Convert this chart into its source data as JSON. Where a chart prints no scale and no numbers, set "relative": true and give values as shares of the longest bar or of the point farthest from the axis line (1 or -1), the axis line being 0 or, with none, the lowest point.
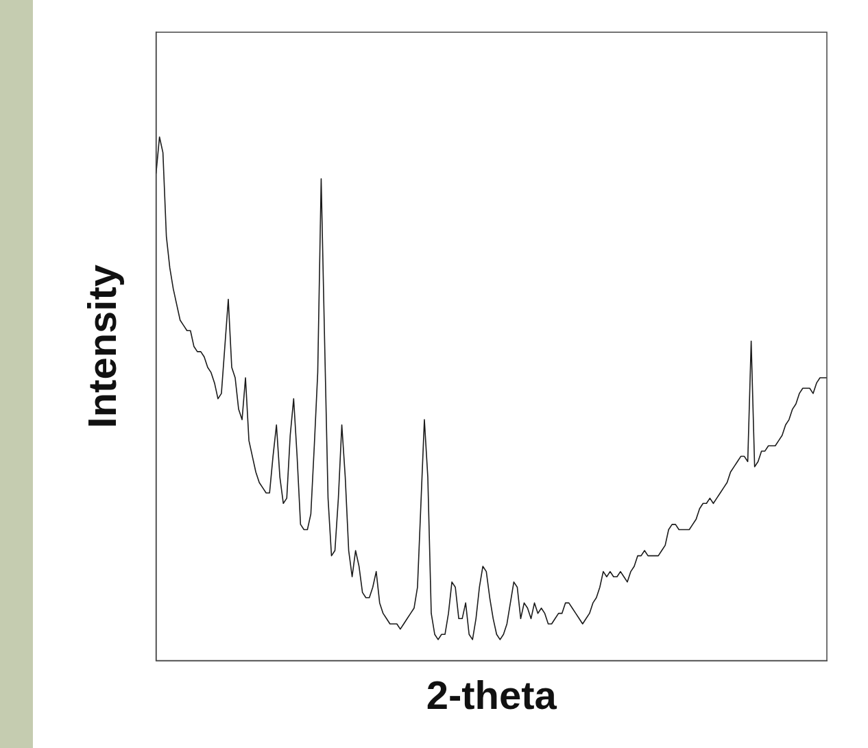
{
  "chart_data": {
    "type": "line",
    "xlabel": "2-theta",
    "ylabel": "Intensity",
    "relative": true,
    "tick_labels": false,
    "marker": "none",
    "categories": [
      null,
      null,
      null,
      null,
      null,
      null,
      null,
      null,
      null,
      null,
      null,
      null,
      null,
      null,
      null,
      null,
      null,
      null,
      null,
      null,
      null,
      null,
      null,
      null,
      null,
      null,
      null,
      null,
      null,
      null,
      null,
      null,
      null,
      null,
      null,
      null,
      null,
      null,
      null,
      null,
      null,
      null,
      null,
      null,
      null,
      null,
      null,
      null,
      null,
      null,
      null,
      null,
      null,
      null,
      null,
      null,
      null,
      null,
      null,
      null,
      null,
      null,
      null,
      null,
      null,
      null,
      null,
      null,
      null,
      null,
      null,
      null,
      null,
      null,
      null,
      null,
      null,
      null,
      null,
      null,
      null,
      null,
      null,
      null,
      null,
      null,
      null,
      null,
      null,
      null,
      null,
      null,
      null,
      null,
      null,
      null,
      null,
      null,
      null,
      null,
      null,
      null,
      null,
      null,
      null,
      null,
      null,
      null,
      null,
      null,
      null,
      null,
      null,
      null,
      null,
      null,
      null,
      null,
      null,
      null,
      null,
      null,
      null,
      null,
      null,
      null,
      null,
      null,
      null,
      null,
      null,
      null,
      null,
      null,
      null,
      null,
      null,
      null,
      null,
      null,
      null,
      null,
      null,
      null,
      null,
      null,
      null,
      null,
      null,
      null,
      null,
      null,
      null,
      null,
      null,
      null,
      null,
      null,
      null,
      null,
      null,
      null,
      null,
      null,
      null,
      null,
      null,
      null,
      null,
      null,
      null,
      null,
      null,
      null,
      null,
      null,
      null,
      null,
      null,
      null,
      null,
      null,
      null,
      null,
      null,
      null,
      null,
      null,
      null,
      null,
      null,
      null,
      null,
      null,
      null,
      null
    ],
    "series": [
      {
        "color": "#1a1a1a",
        "values": [
          0.93,
          1.0,
          0.97,
          0.81,
          0.75,
          0.71,
          0.68,
          0.65,
          0.64,
          0.63,
          0.63,
          0.6,
          0.59,
          0.59,
          0.58,
          0.56,
          0.55,
          0.53,
          0.5,
          0.51,
          0.6,
          0.69,
          0.56,
          0.54,
          0.48,
          0.46,
          0.54,
          0.42,
          0.39,
          0.36,
          0.34,
          0.33,
          0.32,
          0.32,
          0.39,
          0.45,
          0.35,
          0.3,
          0.31,
          0.43,
          0.5,
          0.39,
          0.26,
          0.25,
          0.25,
          0.28,
          0.41,
          0.55,
          0.92,
          0.61,
          0.31,
          0.2,
          0.21,
          0.31,
          0.45,
          0.35,
          0.21,
          0.16,
          0.21,
          0.18,
          0.13,
          0.12,
          0.12,
          0.14,
          0.17,
          0.11,
          0.09,
          0.08,
          0.07,
          0.07,
          0.07,
          0.06,
          0.07,
          0.08,
          0.09,
          0.1,
          0.14,
          0.3,
          0.46,
          0.35,
          0.09,
          0.05,
          0.04,
          0.05,
          0.05,
          0.09,
          0.15,
          0.14,
          0.08,
          0.08,
          0.11,
          0.05,
          0.04,
          0.08,
          0.14,
          0.18,
          0.17,
          0.12,
          0.08,
          0.05,
          0.04,
          0.05,
          0.07,
          0.11,
          0.15,
          0.14,
          0.08,
          0.11,
          0.1,
          0.08,
          0.11,
          0.09,
          0.1,
          0.09,
          0.07,
          0.07,
          0.08,
          0.09,
          0.09,
          0.11,
          0.11,
          0.1,
          0.09,
          0.08,
          0.07,
          0.08,
          0.09,
          0.11,
          0.12,
          0.14,
          0.17,
          0.16,
          0.17,
          0.16,
          0.16,
          0.17,
          0.16,
          0.15,
          0.17,
          0.18,
          0.2,
          0.2,
          0.21,
          0.2,
          0.2,
          0.2,
          0.2,
          0.21,
          0.22,
          0.25,
          0.26,
          0.26,
          0.25,
          0.25,
          0.25,
          0.25,
          0.26,
          0.27,
          0.29,
          0.3,
          0.3,
          0.31,
          0.3,
          0.31,
          0.32,
          0.33,
          0.34,
          0.36,
          0.37,
          0.38,
          0.39,
          0.39,
          0.38,
          0.61,
          0.37,
          0.38,
          0.4,
          0.4,
          0.41,
          0.41,
          0.41,
          0.42,
          0.43,
          0.45,
          0.46,
          0.48,
          0.49,
          0.51,
          0.52,
          0.52,
          0.52,
          0.51,
          0.53,
          0.54,
          0.54,
          0.54
        ]
      }
    ]
  }
}
